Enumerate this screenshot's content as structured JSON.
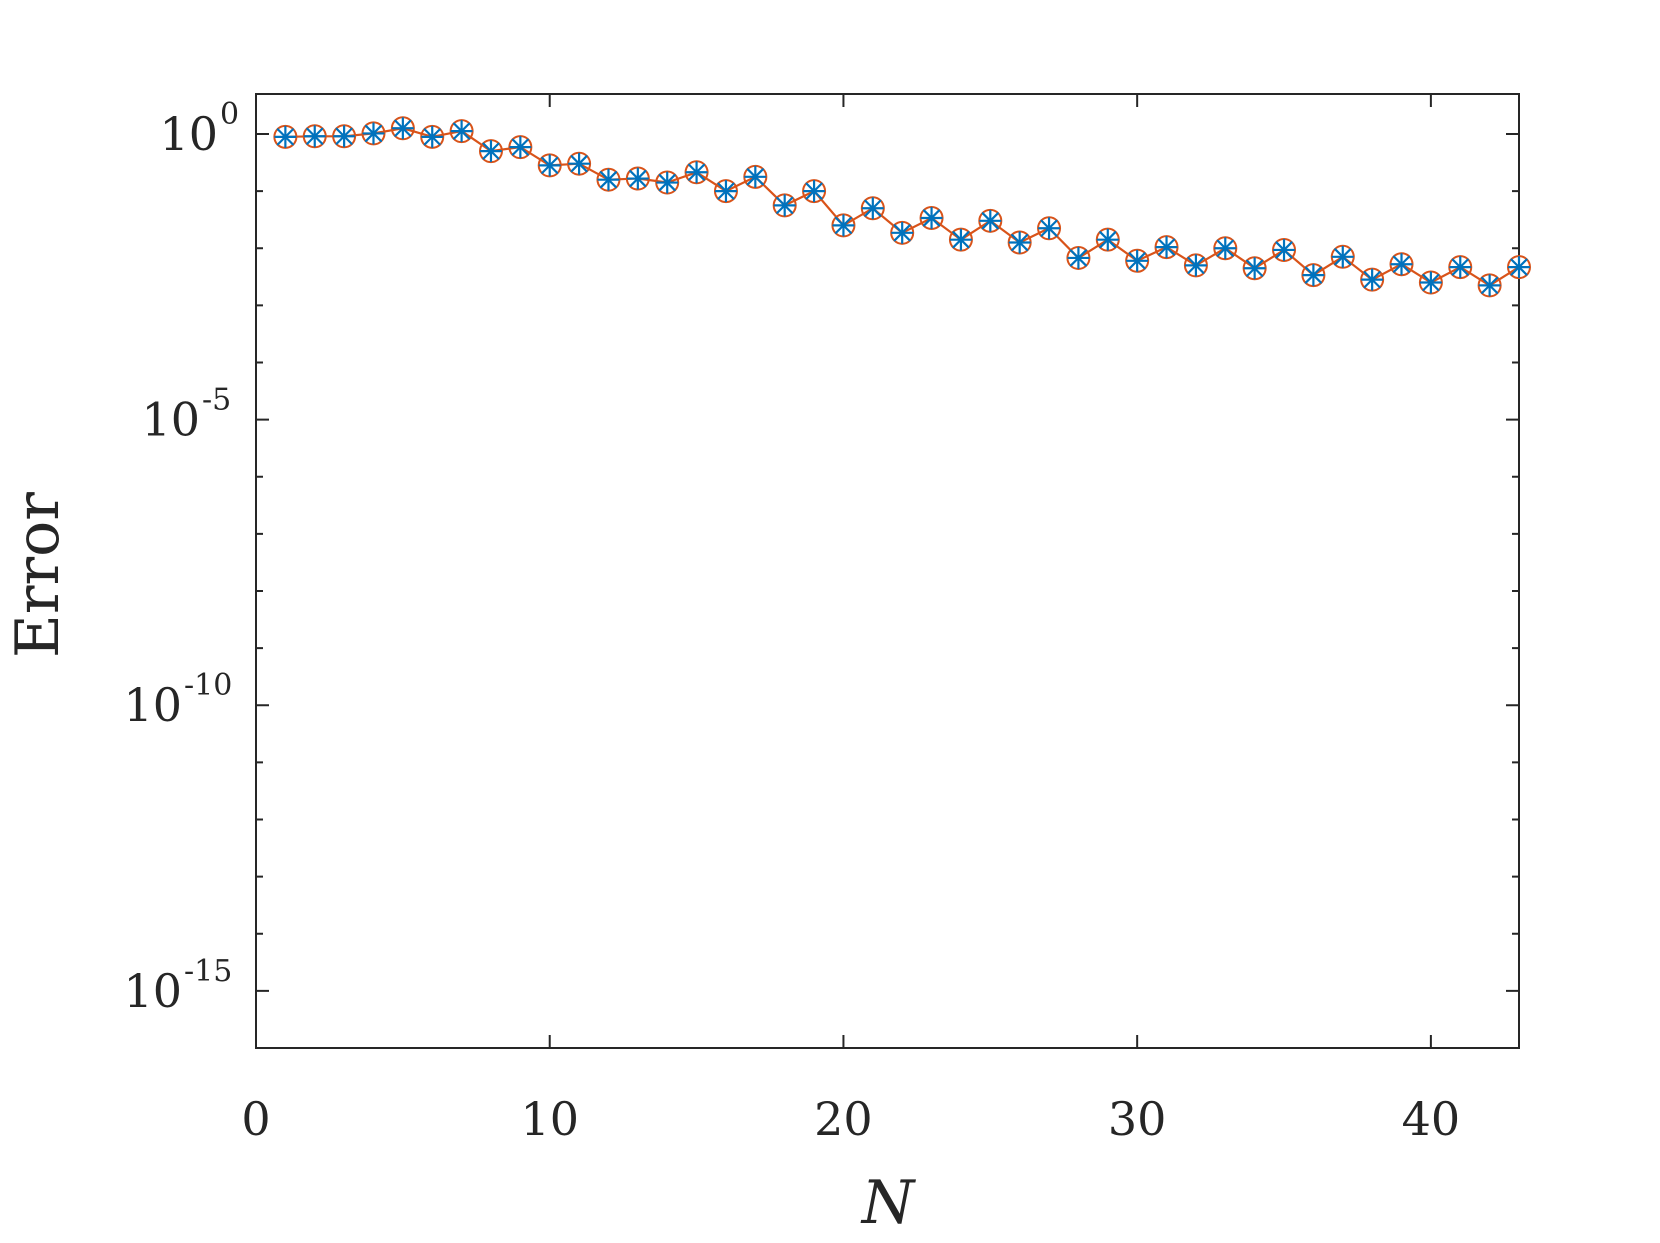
{
  "chart_data": {
    "type": "line",
    "title": "",
    "xlabel": "N",
    "ylabel": "Error",
    "xlim": [
      0,
      43
    ],
    "ylim_log10": [
      -16,
      0.7
    ],
    "yscale": "log",
    "grid": false,
    "x_ticks": [
      {
        "value": 0,
        "label": "0"
      },
      {
        "value": 10,
        "label": "10"
      },
      {
        "value": 20,
        "label": "20"
      },
      {
        "value": 30,
        "label": "30"
      },
      {
        "value": 40,
        "label": "40"
      }
    ],
    "y_ticks": [
      {
        "exponent": 0,
        "base": "10",
        "power": "0"
      },
      {
        "exponent": -5,
        "base": "10",
        "power": "-5"
      },
      {
        "exponent": -10,
        "base": "10",
        "power": "-10"
      },
      {
        "exponent": -15,
        "base": "10",
        "power": "-15"
      }
    ],
    "x": [
      1,
      2,
      3,
      4,
      5,
      6,
      7,
      8,
      9,
      10,
      11,
      12,
      13,
      14,
      15,
      16,
      17,
      18,
      19,
      20,
      21,
      22,
      23,
      24,
      25,
      26,
      27,
      28,
      29,
      30,
      31,
      32,
      33,
      34,
      35,
      36,
      37,
      38,
      39,
      40,
      41,
      42,
      43
    ],
    "series": [
      {
        "marker": "circle",
        "color": "#d95319",
        "log10_values": [
          -0.05,
          -0.04,
          -0.04,
          0.01,
          0.1,
          -0.05,
          0.05,
          -0.3,
          -0.23,
          -0.55,
          -0.52,
          -0.8,
          -0.78,
          -0.85,
          -0.67,
          -1.0,
          -0.75,
          -1.25,
          -1.0,
          -1.6,
          -1.3,
          -1.73,
          -1.47,
          -1.85,
          -1.52,
          -1.9,
          -1.65,
          -2.17,
          -1.85,
          -2.22,
          -1.98,
          -2.3,
          -2.0,
          -2.35,
          -2.03,
          -2.47,
          -2.15,
          -2.55,
          -2.28,
          -2.6,
          -2.33,
          -2.65,
          -2.33
        ]
      },
      {
        "marker": "asterisk",
        "color": "#0072bd",
        "log10_values": [
          -0.05,
          -0.04,
          -0.04,
          0.01,
          0.1,
          -0.05,
          0.05,
          -0.3,
          -0.23,
          -0.55,
          -0.52,
          -0.8,
          -0.78,
          -0.85,
          -0.67,
          -1.0,
          -0.75,
          -1.25,
          -1.0,
          -1.6,
          -1.3,
          -1.73,
          -1.47,
          -1.85,
          -1.52,
          -1.9,
          -1.65,
          -2.17,
          -1.85,
          -2.22,
          -1.98,
          -2.3,
          -2.0,
          -2.35,
          -2.03,
          -2.47,
          -2.15,
          -2.55,
          -2.28,
          -2.6,
          -2.33,
          -2.65,
          -2.33
        ]
      }
    ],
    "colors": {
      "axis": "#262626",
      "line": "#d95319",
      "circle": "#d95319",
      "asterisk": "#0072bd"
    }
  }
}
